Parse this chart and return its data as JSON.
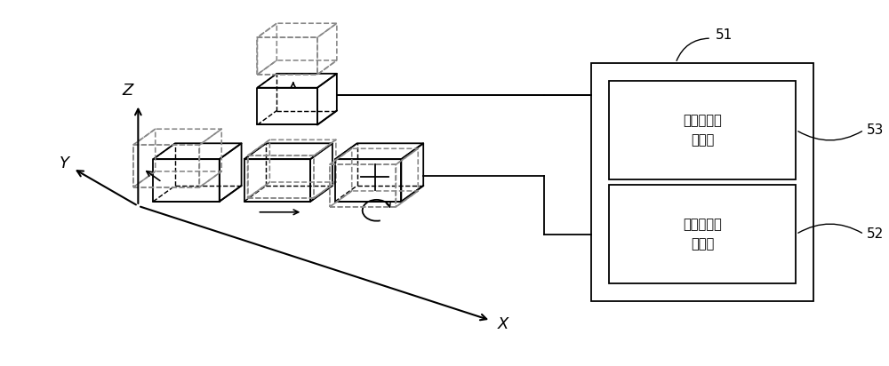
{
  "bg_color": "#ffffff",
  "line_color": "#000000",
  "dashed_color": "#888888",
  "text_color": "#000000",
  "figsize": [
    10.0,
    4.12
  ],
  "dpi": 100,
  "label_51": "51",
  "label_52": "52",
  "label_53": "53",
  "box_label_53": "对接距离控\n制模组",
  "box_label_52": "平面运动控\n制模组",
  "z_label": "Z",
  "y_label": "Y",
  "x_label": "X"
}
